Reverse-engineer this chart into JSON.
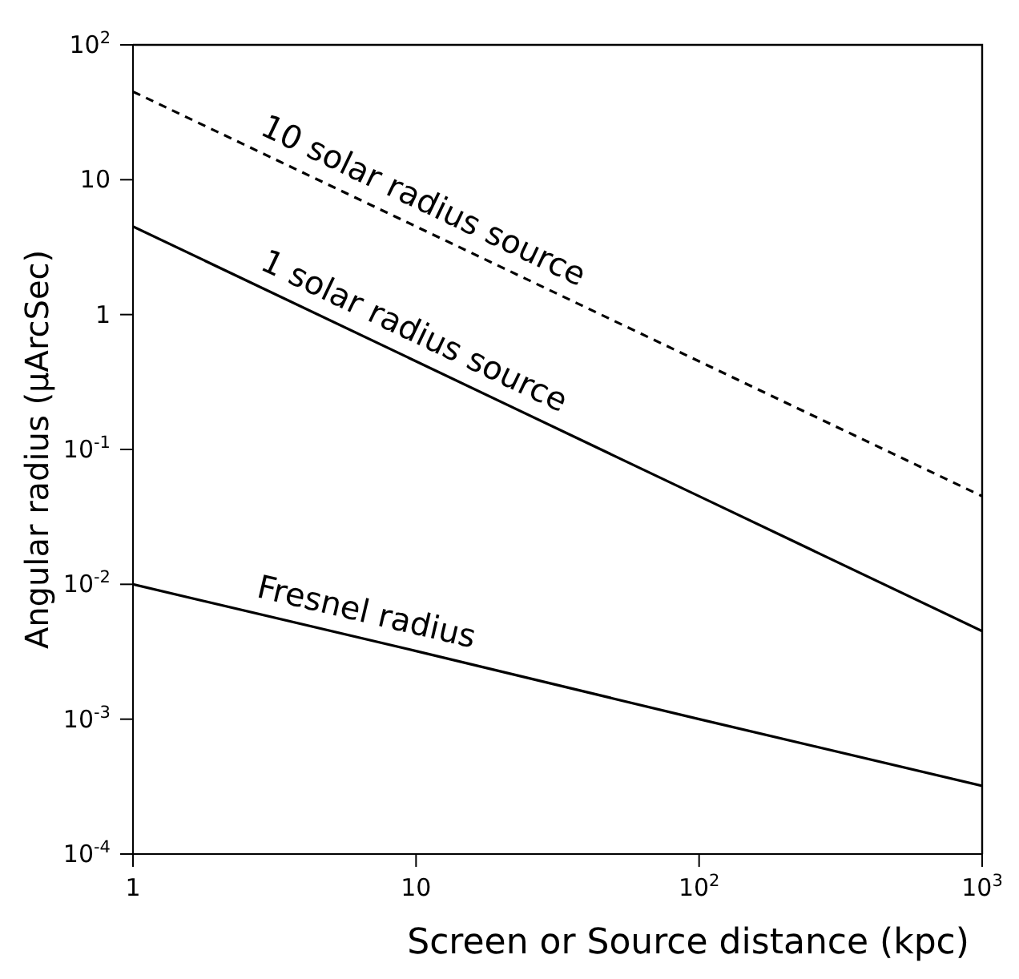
{
  "chart_data": {
    "type": "line",
    "xlabel": "Screen or Source distance (kpc)",
    "ylabel": "Angular radius (μArcSec)",
    "log": "xy",
    "grid": false,
    "legend": false,
    "marker": "none",
    "x": [
      1,
      10,
      100,
      1000
    ],
    "xlim": [
      1,
      1000
    ],
    "xticks": [
      1,
      10,
      {
        "value": 100,
        "label": "10$^{2}$"
      },
      {
        "value": 1000,
        "label": "10$^{3}$"
      }
    ],
    "ylim": [
      0.0001,
      100
    ],
    "yticks": [
      {
        "value": 0.0001,
        "label": "10$^{-4}$"
      },
      {
        "value": 0.001,
        "label": "10$^{-3}$"
      },
      {
        "value": 0.01,
        "label": "10$^{-2}$"
      },
      {
        "value": 0.1,
        "label": "10$^{-1}$"
      },
      1,
      10,
      {
        "value": 100,
        "label": "10$^{2}$"
      }
    ],
    "series": [
      {
        "name": "10 solar radius source",
        "color": "#000000",
        "line_style": "dashed",
        "values": [
          45,
          4.5,
          0.45,
          0.045
        ]
      },
      {
        "name": "1 solar radius source",
        "color": "#000000",
        "line_style": "solid",
        "values": [
          4.5,
          0.45,
          0.045,
          0.0045
        ]
      },
      {
        "name": "Fresnel radius",
        "color": "#000000",
        "line_style": "solid",
        "values": [
          0.01,
          0.0032,
          0.001,
          0.00032
        ]
      }
    ]
  }
}
